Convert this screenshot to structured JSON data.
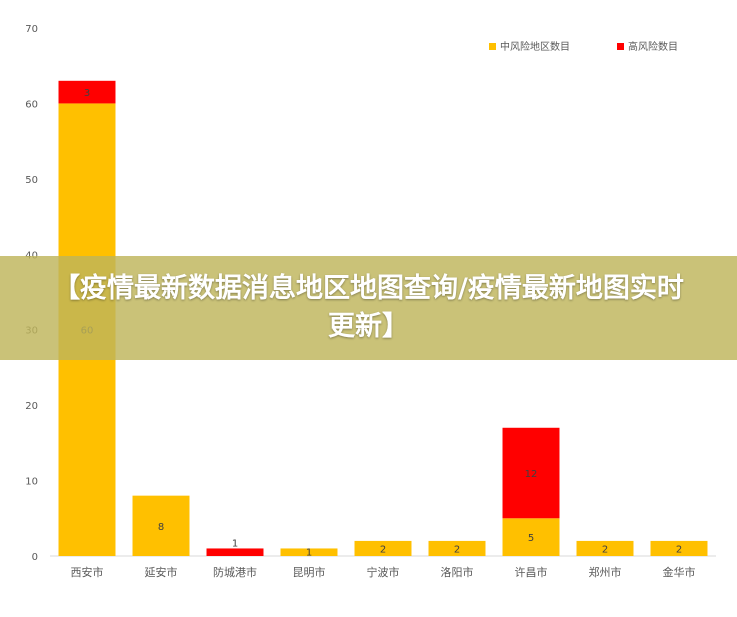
{
  "banner": {
    "title": "【疫情最新数据消息地区地图查询/疫情最新地图实时更新】"
  },
  "chart_data": {
    "type": "bar",
    "stacked": true,
    "categories": [
      "西安市",
      "延安市",
      "防城港市",
      "昆明市",
      "宁波市",
      "洛阳市",
      "许昌市",
      "郑州市",
      "金华市"
    ],
    "series": [
      {
        "name": "中风险地区数目",
        "color": "#FFC000",
        "values": [
          60,
          8,
          0,
          1,
          2,
          2,
          5,
          2,
          2
        ]
      },
      {
        "name": "高风险数目",
        "color": "#FF0000",
        "values": [
          3,
          0,
          1,
          0,
          0,
          0,
          12,
          0,
          0
        ]
      }
    ],
    "ylim": [
      0,
      70
    ],
    "yticks": [
      0,
      10,
      20,
      30,
      40,
      50,
      60,
      70
    ],
    "legend_position": "top-right",
    "grid": false
  }
}
